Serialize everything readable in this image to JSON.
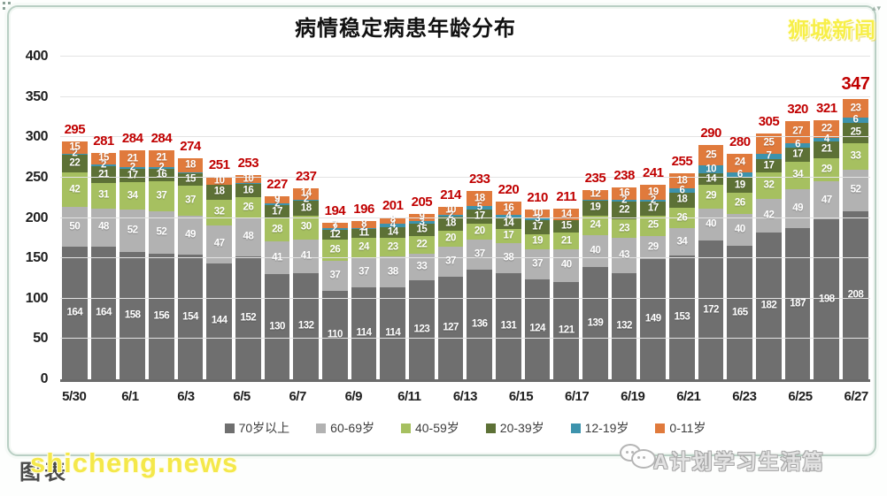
{
  "header": {
    "title": "病情稳定病患年龄分布",
    "logo": "狮城新闻"
  },
  "chart_data": {
    "type": "bar",
    "variant": "stacked-column",
    "title": "病情稳定病患年龄分布",
    "xlabel": "",
    "ylabel": "",
    "ylim": [
      0,
      400
    ],
    "yticks": [
      0,
      50,
      100,
      150,
      200,
      250,
      300,
      350,
      400
    ],
    "grid": true,
    "legend_position": "bottom",
    "categories": [
      "5/30",
      "5/31",
      "6/1",
      "6/2",
      "6/3",
      "6/4",
      "6/5",
      "6/6",
      "6/7",
      "6/8",
      "6/9",
      "6/10",
      "6/11",
      "6/12",
      "6/13",
      "6/14",
      "6/15",
      "6/16",
      "6/17",
      "6/18",
      "6/19",
      "6/20",
      "6/21",
      "6/22",
      "6/23",
      "6/24",
      "6/25",
      "6/26"
    ],
    "x_tick_labels": [
      "5/30",
      "6/1",
      "6/3",
      "6/5",
      "6/7",
      "6/9",
      "6/11",
      "6/13",
      "6/15",
      "6/17",
      "6/19",
      "6/21",
      "6/23",
      "6/25",
      "6/27"
    ],
    "series": [
      {
        "name": "70岁以上",
        "color": "#6f6f6f",
        "values": [
          164,
          164,
          158,
          156,
          154,
          144,
          152,
          130,
          132,
          110,
          114,
          114,
          123,
          127,
          136,
          131,
          124,
          121,
          139,
          132,
          149,
          153,
          172,
          165,
          182,
          187,
          198,
          208
        ]
      },
      {
        "name": "60-69岁",
        "color": "#b2b2b2",
        "values": [
          50,
          48,
          52,
          52,
          49,
          47,
          48,
          41,
          41,
          37,
          37,
          38,
          33,
          37,
          37,
          38,
          37,
          40,
          40,
          43,
          29,
          34,
          40,
          40,
          42,
          49,
          47,
          52
        ]
      },
      {
        "name": "40-59岁",
        "color": "#a6c060",
        "values": [
          42,
          31,
          34,
          37,
          37,
          32,
          26,
          28,
          30,
          26,
          24,
          23,
          22,
          20,
          20,
          17,
          19,
          21,
          24,
          23,
          25,
          26,
          29,
          26,
          32,
          34,
          29,
          33
        ]
      },
      {
        "name": "20-39岁",
        "color": "#5d7136",
        "values": [
          22,
          21,
          17,
          16,
          15,
          18,
          16,
          17,
          18,
          12,
          11,
          14,
          15,
          18,
          17,
          14,
          17,
          15,
          19,
          22,
          17,
          18,
          14,
          19,
          17,
          17,
          21,
          25
        ]
      },
      {
        "name": "12-19岁",
        "color": "#3d93ad",
        "values": [
          2,
          2,
          2,
          2,
          1,
          0,
          1,
          2,
          2,
          2,
          2,
          4,
          3,
          2,
          5,
          4,
          3,
          0,
          1,
          2,
          2,
          6,
          10,
          6,
          7,
          6,
          4,
          6
        ]
      },
      {
        "name": "0-11岁",
        "color": "#e07a3c",
        "values": [
          15,
          15,
          21,
          21,
          18,
          10,
          10,
          9,
          14,
          7,
          8,
          8,
          9,
          10,
          18,
          16,
          10,
          14,
          12,
          16,
          19,
          18,
          25,
          24,
          25,
          27,
          22,
          23
        ]
      }
    ],
    "totals": [
      295,
      281,
      284,
      284,
      274,
      251,
      253,
      227,
      237,
      194,
      196,
      201,
      205,
      214,
      233,
      220,
      210,
      211,
      235,
      238,
      241,
      255,
      290,
      280,
      305,
      320,
      321,
      347
    ],
    "total_color": "#c00000"
  },
  "watermarks": {
    "bottom_left_under": "图表",
    "bottom_left_over": "shicheng.news",
    "bottom_right": "A计划学习生活篇"
  }
}
